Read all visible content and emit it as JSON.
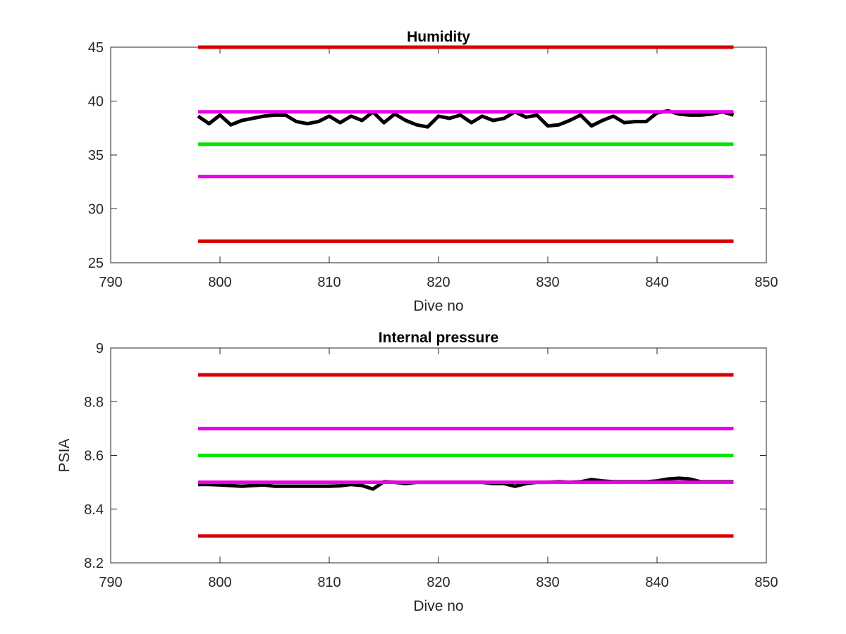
{
  "chart_data": [
    {
      "type": "line",
      "title": "Humidity",
      "xlabel": "Dive no",
      "ylabel": "",
      "xlim": [
        790,
        850
      ],
      "ylim": [
        25,
        45
      ],
      "xticks": [
        790,
        800,
        810,
        820,
        830,
        840,
        850
      ],
      "yticks": [
        25,
        30,
        35,
        40,
        45
      ],
      "grid": false,
      "series": [
        {
          "color": "#000000",
          "x": [
            798,
            799,
            800,
            801,
            802,
            803,
            804,
            805,
            806,
            807,
            808,
            809,
            810,
            811,
            812,
            813,
            814,
            815,
            816,
            817,
            818,
            819,
            820,
            821,
            822,
            823,
            824,
            825,
            826,
            827,
            828,
            829,
            830,
            831,
            832,
            833,
            834,
            835,
            836,
            837,
            838,
            839,
            840,
            841,
            842,
            843,
            844,
            845,
            846,
            847
          ],
          "y": [
            38.6,
            37.9,
            38.7,
            37.8,
            38.2,
            38.4,
            38.6,
            38.7,
            38.7,
            38.1,
            37.9,
            38.1,
            38.6,
            38.0,
            38.6,
            38.2,
            39.0,
            38.0,
            38.8,
            38.2,
            37.8,
            37.6,
            38.6,
            38.4,
            38.7,
            38.0,
            38.6,
            38.2,
            38.4,
            39.0,
            38.5,
            38.7,
            37.7,
            37.8,
            38.2,
            38.7,
            37.7,
            38.2,
            38.6,
            38.0,
            38.1,
            38.1,
            38.9,
            39.1,
            38.8,
            38.7,
            38.7,
            38.8,
            39.0,
            38.7
          ]
        },
        {
          "color": "#d60000",
          "x": [
            798,
            847
          ],
          "y": [
            45,
            45
          ]
        },
        {
          "color": "#ea00ea",
          "x": [
            798,
            847
          ],
          "y": [
            39,
            39
          ]
        },
        {
          "color": "#00e600",
          "x": [
            798,
            847
          ],
          "y": [
            36,
            36
          ]
        },
        {
          "color": "#ea00ea",
          "x": [
            798,
            847
          ],
          "y": [
            33,
            33
          ]
        },
        {
          "color": "#d60000",
          "x": [
            798,
            847
          ],
          "y": [
            27,
            27
          ]
        }
      ]
    },
    {
      "type": "line",
      "title": "Internal pressure",
      "xlabel": "Dive no",
      "ylabel": "PSIA",
      "xlim": [
        790,
        850
      ],
      "ylim": [
        8.2,
        9
      ],
      "xticks": [
        790,
        800,
        810,
        820,
        830,
        840,
        850
      ],
      "yticks": [
        8.2,
        8.4,
        8.6,
        8.8,
        9
      ],
      "grid": false,
      "series": [
        {
          "color": "#000000",
          "x": [
            798,
            799,
            800,
            801,
            802,
            803,
            804,
            805,
            806,
            807,
            808,
            809,
            810,
            811,
            812,
            813,
            814,
            815,
            816,
            817,
            818,
            819,
            820,
            821,
            822,
            823,
            824,
            825,
            826,
            827,
            828,
            829,
            830,
            831,
            832,
            833,
            834,
            835,
            836,
            837,
            838,
            839,
            840,
            841,
            842,
            843,
            844,
            845,
            846,
            847
          ],
          "y": [
            8.492,
            8.492,
            8.49,
            8.488,
            8.485,
            8.488,
            8.49,
            8.485,
            8.485,
            8.485,
            8.485,
            8.485,
            8.485,
            8.487,
            8.492,
            8.488,
            8.475,
            8.502,
            8.5,
            8.495,
            8.5,
            8.5,
            8.5,
            8.5,
            8.5,
            8.5,
            8.5,
            8.495,
            8.495,
            8.485,
            8.495,
            8.5,
            8.5,
            8.502,
            8.5,
            8.502,
            8.51,
            8.505,
            8.502,
            8.502,
            8.502,
            8.502,
            8.505,
            8.512,
            8.515,
            8.512,
            8.502,
            8.502,
            8.502,
            8.502
          ]
        },
        {
          "color": "#d60000",
          "x": [
            798,
            847
          ],
          "y": [
            8.9,
            8.9
          ]
        },
        {
          "color": "#ea00ea",
          "x": [
            798,
            847
          ],
          "y": [
            8.7,
            8.7
          ]
        },
        {
          "color": "#00e600",
          "x": [
            798,
            847
          ],
          "y": [
            8.6,
            8.6
          ]
        },
        {
          "color": "#ea00ea",
          "x": [
            798,
            847
          ],
          "y": [
            8.5,
            8.5
          ]
        },
        {
          "color": "#d60000",
          "x": [
            798,
            847
          ],
          "y": [
            8.3,
            8.3
          ]
        }
      ]
    }
  ]
}
